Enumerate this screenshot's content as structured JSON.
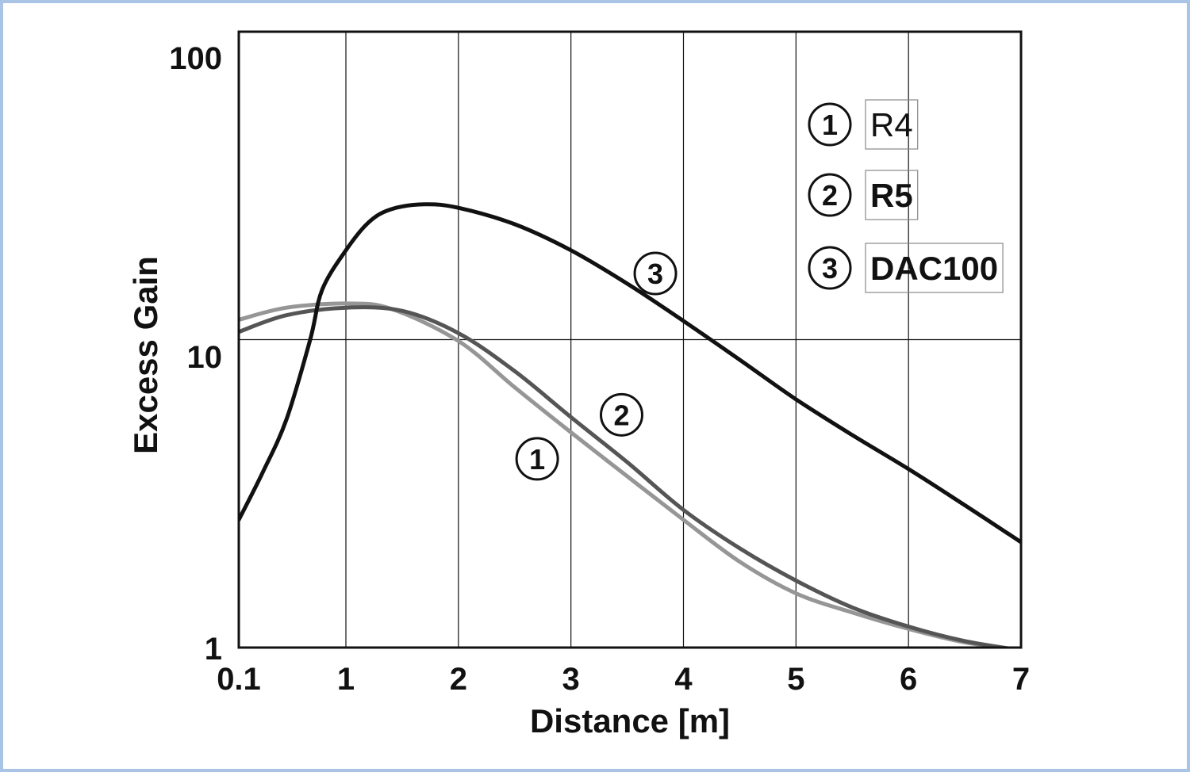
{
  "chart_data": {
    "type": "line",
    "title": "",
    "xlabel": "Distance [m]",
    "ylabel": "Excess Gain",
    "x_ticks": [
      {
        "value": 0.1,
        "label": "0.1"
      },
      {
        "value": 1,
        "label": "1"
      },
      {
        "value": 2,
        "label": "2"
      },
      {
        "value": 3,
        "label": "3"
      },
      {
        "value": 4,
        "label": "4"
      },
      {
        "value": 5,
        "label": "5"
      },
      {
        "value": 6,
        "label": "6"
      },
      {
        "value": 7,
        "label": "7"
      }
    ],
    "y_ticks": [
      {
        "value": 1,
        "label": "1"
      },
      {
        "value": 10,
        "label": "10"
      },
      {
        "value": 100,
        "label": "100"
      }
    ],
    "xlim": [
      0.1,
      7
    ],
    "ylim": [
      1,
      100
    ],
    "y_scale": "log",
    "grid": true,
    "legend_position": "top-right",
    "series": [
      {
        "id": "1",
        "name": "R4",
        "color": "#969696",
        "bold_label": false,
        "points": [
          [
            0.1,
            11.6
          ],
          [
            0.5,
            12.7
          ],
          [
            1.0,
            13.1
          ],
          [
            1.4,
            12.6
          ],
          [
            2.0,
            9.9
          ],
          [
            2.5,
            7.0
          ],
          [
            3.0,
            5.0
          ],
          [
            3.5,
            3.6
          ],
          [
            4.0,
            2.6
          ],
          [
            4.5,
            1.9
          ],
          [
            5.0,
            1.5
          ],
          [
            5.5,
            1.3
          ],
          [
            6.0,
            1.15
          ],
          [
            6.5,
            1.04
          ],
          [
            7.0,
            0.98
          ]
        ],
        "label_at": [
          2.7,
          4.1
        ]
      },
      {
        "id": "2",
        "name": "R5",
        "color": "#555555",
        "bold_label": true,
        "points": [
          [
            0.1,
            10.6
          ],
          [
            0.5,
            12.0
          ],
          [
            1.0,
            12.7
          ],
          [
            1.5,
            12.4
          ],
          [
            2.0,
            10.5
          ],
          [
            2.5,
            7.9
          ],
          [
            3.0,
            5.6
          ],
          [
            3.5,
            4.0
          ],
          [
            4.0,
            2.8
          ],
          [
            4.5,
            2.1
          ],
          [
            5.0,
            1.65
          ],
          [
            5.5,
            1.35
          ],
          [
            6.0,
            1.17
          ],
          [
            6.5,
            1.05
          ],
          [
            7.0,
            0.98
          ]
        ],
        "label_at": [
          3.45,
          5.7
        ]
      },
      {
        "id": "3",
        "name": "DAC100",
        "color": "#111111",
        "bold_label": true,
        "points": [
          [
            0.1,
            2.6
          ],
          [
            0.3,
            3.7
          ],
          [
            0.5,
            5.5
          ],
          [
            0.7,
            10.0
          ],
          [
            0.8,
            14.5
          ],
          [
            1.0,
            19.5
          ],
          [
            1.2,
            24.0
          ],
          [
            1.4,
            26.5
          ],
          [
            1.7,
            27.5
          ],
          [
            2.0,
            26.8
          ],
          [
            2.5,
            23.7
          ],
          [
            3.0,
            19.5
          ],
          [
            3.5,
            15.2
          ],
          [
            4.0,
            11.5
          ],
          [
            4.5,
            8.6
          ],
          [
            5.0,
            6.4
          ],
          [
            5.5,
            4.9
          ],
          [
            6.0,
            3.8
          ],
          [
            6.5,
            2.9
          ],
          [
            7.0,
            2.2
          ]
        ],
        "label_at": [
          3.75,
          16.4
        ]
      }
    ]
  }
}
